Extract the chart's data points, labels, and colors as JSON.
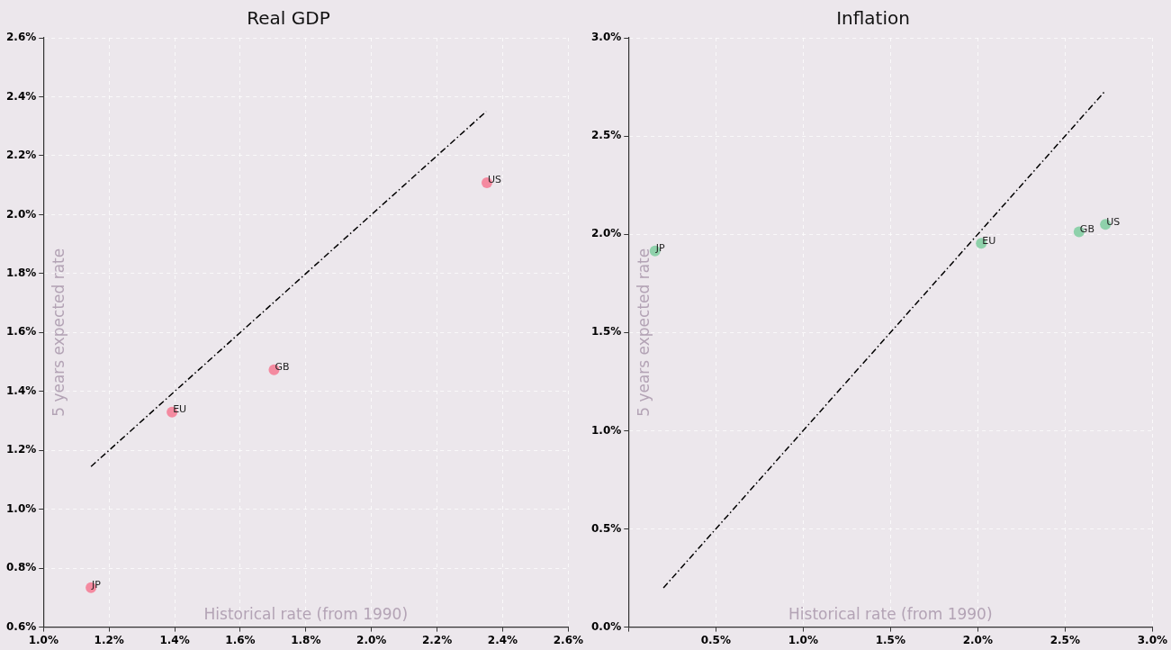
{
  "chart_data": [
    {
      "type": "scatter",
      "title": "Real GDP",
      "xlabel": "Historical rate (from 1990)",
      "ylabel": "5 years expected rate",
      "xlim": [
        1.0,
        2.6
      ],
      "xticks": [
        {
          "value": 1.0,
          "label": "1.0%"
        },
        {
          "value": 1.2,
          "label": "1.2%"
        },
        {
          "value": 1.4,
          "label": "1.4%"
        },
        {
          "value": 1.6,
          "label": "1.6%"
        },
        {
          "value": 1.8,
          "label": "1.8%"
        },
        {
          "value": 2.0,
          "label": "2.0%"
        },
        {
          "value": 2.2,
          "label": "2.2%"
        },
        {
          "value": 2.4,
          "label": "2.4%"
        },
        {
          "value": 2.6,
          "label": "2.6%"
        }
      ],
      "ylim": [
        0.6,
        2.6
      ],
      "yticks": [
        {
          "value": 0.6,
          "label": "0.6%"
        },
        {
          "value": 0.8,
          "label": "0.8%"
        },
        {
          "value": 1.0,
          "label": "1.0%"
        },
        {
          "value": 1.2,
          "label": "1.2%"
        },
        {
          "value": 1.4,
          "label": "1.4%"
        },
        {
          "value": 1.6,
          "label": "1.6%"
        },
        {
          "value": 1.8,
          "label": "1.8%"
        },
        {
          "value": 2.0,
          "label": "2.0%"
        },
        {
          "value": 2.2,
          "label": "2.2%"
        },
        {
          "value": 2.4,
          "label": "2.4%"
        },
        {
          "value": 2.6,
          "label": "2.6%"
        }
      ],
      "grid": true,
      "marker": "circle",
      "series": [
        {
          "type": "scatter",
          "color": "#f48aa0",
          "x": [
            1.145,
            1.392,
            1.703,
            2.352
          ],
          "values": [
            0.734,
            1.33,
            1.473,
            2.108
          ]
        },
        {
          "type": "line",
          "color": "#000000",
          "line_style": "dashed",
          "marker": "none",
          "x": [
            1.145,
            2.35
          ],
          "values": [
            1.145,
            2.35
          ]
        }
      ],
      "annotations": [
        {
          "text": "JP",
          "x": 1.145,
          "y": 0.734
        },
        {
          "text": "EU",
          "x": 1.392,
          "y": 1.33
        },
        {
          "text": "GB",
          "x": 1.703,
          "y": 1.473
        },
        {
          "text": "US",
          "x": 2.352,
          "y": 2.108
        }
      ]
    },
    {
      "type": "scatter",
      "title": "Inflation",
      "xlabel": "Historical rate (from 1990)",
      "ylabel": "5 years expected rate",
      "xlim": [
        0,
        3.0
      ],
      "xticks": [
        {
          "value": 0,
          "label": null
        },
        {
          "value": 0.5,
          "label": "0.5%"
        },
        {
          "value": 1.0,
          "label": "1.0%"
        },
        {
          "value": 1.5,
          "label": "1.5%"
        },
        {
          "value": 2.0,
          "label": "2.0%"
        },
        {
          "value": 2.5,
          "label": "2.5%"
        },
        {
          "value": 3.0,
          "label": "3.0%"
        }
      ],
      "ylim": [
        0,
        3.0
      ],
      "yticks": [
        {
          "value": 0,
          "label": "0.0%"
        },
        {
          "value": 0.5,
          "label": "0.5%"
        },
        {
          "value": 1.0,
          "label": "1.0%"
        },
        {
          "value": 1.5,
          "label": "1.5%"
        },
        {
          "value": 2.0,
          "label": "2.0%"
        },
        {
          "value": 2.5,
          "label": "2.5%"
        },
        {
          "value": 3.0,
          "label": "3.0%"
        }
      ],
      "grid": true,
      "marker": "circle",
      "series": [
        {
          "type": "scatter",
          "color": "#8fd1ab",
          "x": [
            0.152,
            2.02,
            2.58,
            2.731
          ],
          "values": [
            1.915,
            1.954,
            2.012,
            2.05
          ]
        },
        {
          "type": "line",
          "color": "#000000",
          "line_style": "dashed",
          "marker": "none",
          "x": [
            0.2,
            2.73
          ],
          "values": [
            0.2,
            2.73
          ]
        }
      ],
      "annotations": [
        {
          "text": "JP",
          "x": 0.152,
          "y": 1.915
        },
        {
          "text": "EU",
          "x": 2.02,
          "y": 1.954
        },
        {
          "text": "GB",
          "x": 2.58,
          "y": 2.012
        },
        {
          "text": "US",
          "x": 2.731,
          "y": 2.05
        }
      ]
    }
  ]
}
